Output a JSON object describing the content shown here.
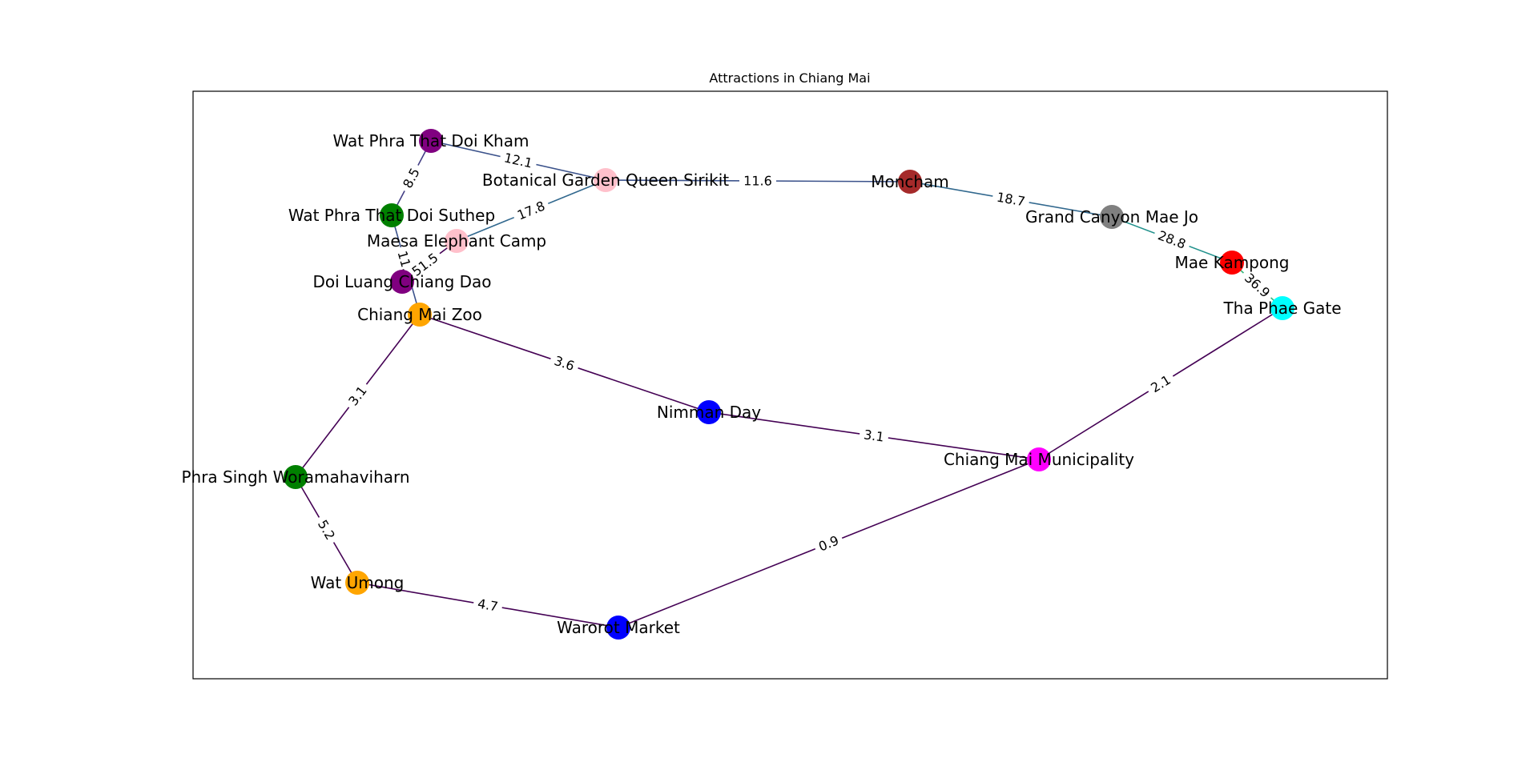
{
  "title": "Attractions in Chiang Mai",
  "nodes": [
    {
      "id": "wat_doi_kham",
      "label": "Wat Phra That Doi Kham",
      "color": "#800080"
    },
    {
      "id": "botanical",
      "label": "Botanical Garden Queen Sirikit",
      "color": "#ffc0cb"
    },
    {
      "id": "moncham",
      "label": "Moncham",
      "color": "#a52a2a"
    },
    {
      "id": "grand_canyon",
      "label": "Grand Canyon Mae Jo",
      "color": "#808080"
    },
    {
      "id": "mae_kampong",
      "label": "Mae Kampong",
      "color": "#ff0000"
    },
    {
      "id": "tha_phae",
      "label": "Tha Phae Gate",
      "color": "#00ffff"
    },
    {
      "id": "wat_doi_suthep",
      "label": "Wat Phra That Doi Suthep",
      "color": "#008000"
    },
    {
      "id": "maesa",
      "label": "Maesa Elephant Camp",
      "color": "#ffc0cb"
    },
    {
      "id": "doi_luang",
      "label": "Doi Luang Chiang Dao",
      "color": "#800080"
    },
    {
      "id": "zoo",
      "label": "Chiang Mai Zoo",
      "color": "#ffa500"
    },
    {
      "id": "nimman",
      "label": "Nimman Day",
      "color": "#0000ff"
    },
    {
      "id": "municipality",
      "label": "Chiang Mai Municipality",
      "color": "#ff00ff"
    },
    {
      "id": "phra_singh",
      "label": "Phra Singh Woramahaviharn",
      "color": "#008000"
    },
    {
      "id": "wat_umong",
      "label": "Wat Umong",
      "color": "#ffa500"
    },
    {
      "id": "warorot",
      "label": "Warorot Market",
      "color": "#0000ff"
    }
  ],
  "edges": [
    {
      "source": "wat_doi_kham",
      "target": "botanical",
      "weight": "12.1",
      "color": "#3b528b"
    },
    {
      "source": "botanical",
      "target": "moncham",
      "weight": "11.6",
      "color": "#3b528b"
    },
    {
      "source": "moncham",
      "target": "grand_canyon",
      "weight": "18.7",
      "color": "#31688e"
    },
    {
      "source": "grand_canyon",
      "target": "mae_kampong",
      "weight": "28.8",
      "color": "#21918c"
    },
    {
      "source": "mae_kampong",
      "target": "tha_phae",
      "weight": "36.9",
      "color": "#35b779"
    },
    {
      "source": "wat_doi_kham",
      "target": "wat_doi_suthep",
      "weight": "8.5",
      "color": "#433e85"
    },
    {
      "source": "botanical",
      "target": "maesa",
      "weight": "17.8",
      "color": "#31688e"
    },
    {
      "source": "wat_doi_suthep",
      "target": "zoo",
      "weight": "11.2",
      "color": "#3b528b"
    },
    {
      "source": "maesa",
      "target": "doi_luang",
      "weight": "51.5",
      "color": "#440154"
    },
    {
      "source": "zoo",
      "target": "nimman",
      "weight": "3.6",
      "color": "#440154"
    },
    {
      "source": "zoo",
      "target": "phra_singh",
      "weight": "3.1",
      "color": "#440154"
    },
    {
      "source": "nimman",
      "target": "municipality",
      "weight": "3.1",
      "color": "#440154"
    },
    {
      "source": "municipality",
      "target": "tha_phae",
      "weight": "2.1",
      "color": "#440154"
    },
    {
      "source": "phra_singh",
      "target": "wat_umong",
      "weight": "5.2",
      "color": "#440154"
    },
    {
      "source": "wat_umong",
      "target": "warorot",
      "weight": "4.7",
      "color": "#440154"
    },
    {
      "source": "warorot",
      "target": "municipality",
      "weight": "0.9",
      "color": "#440154"
    }
  ]
}
